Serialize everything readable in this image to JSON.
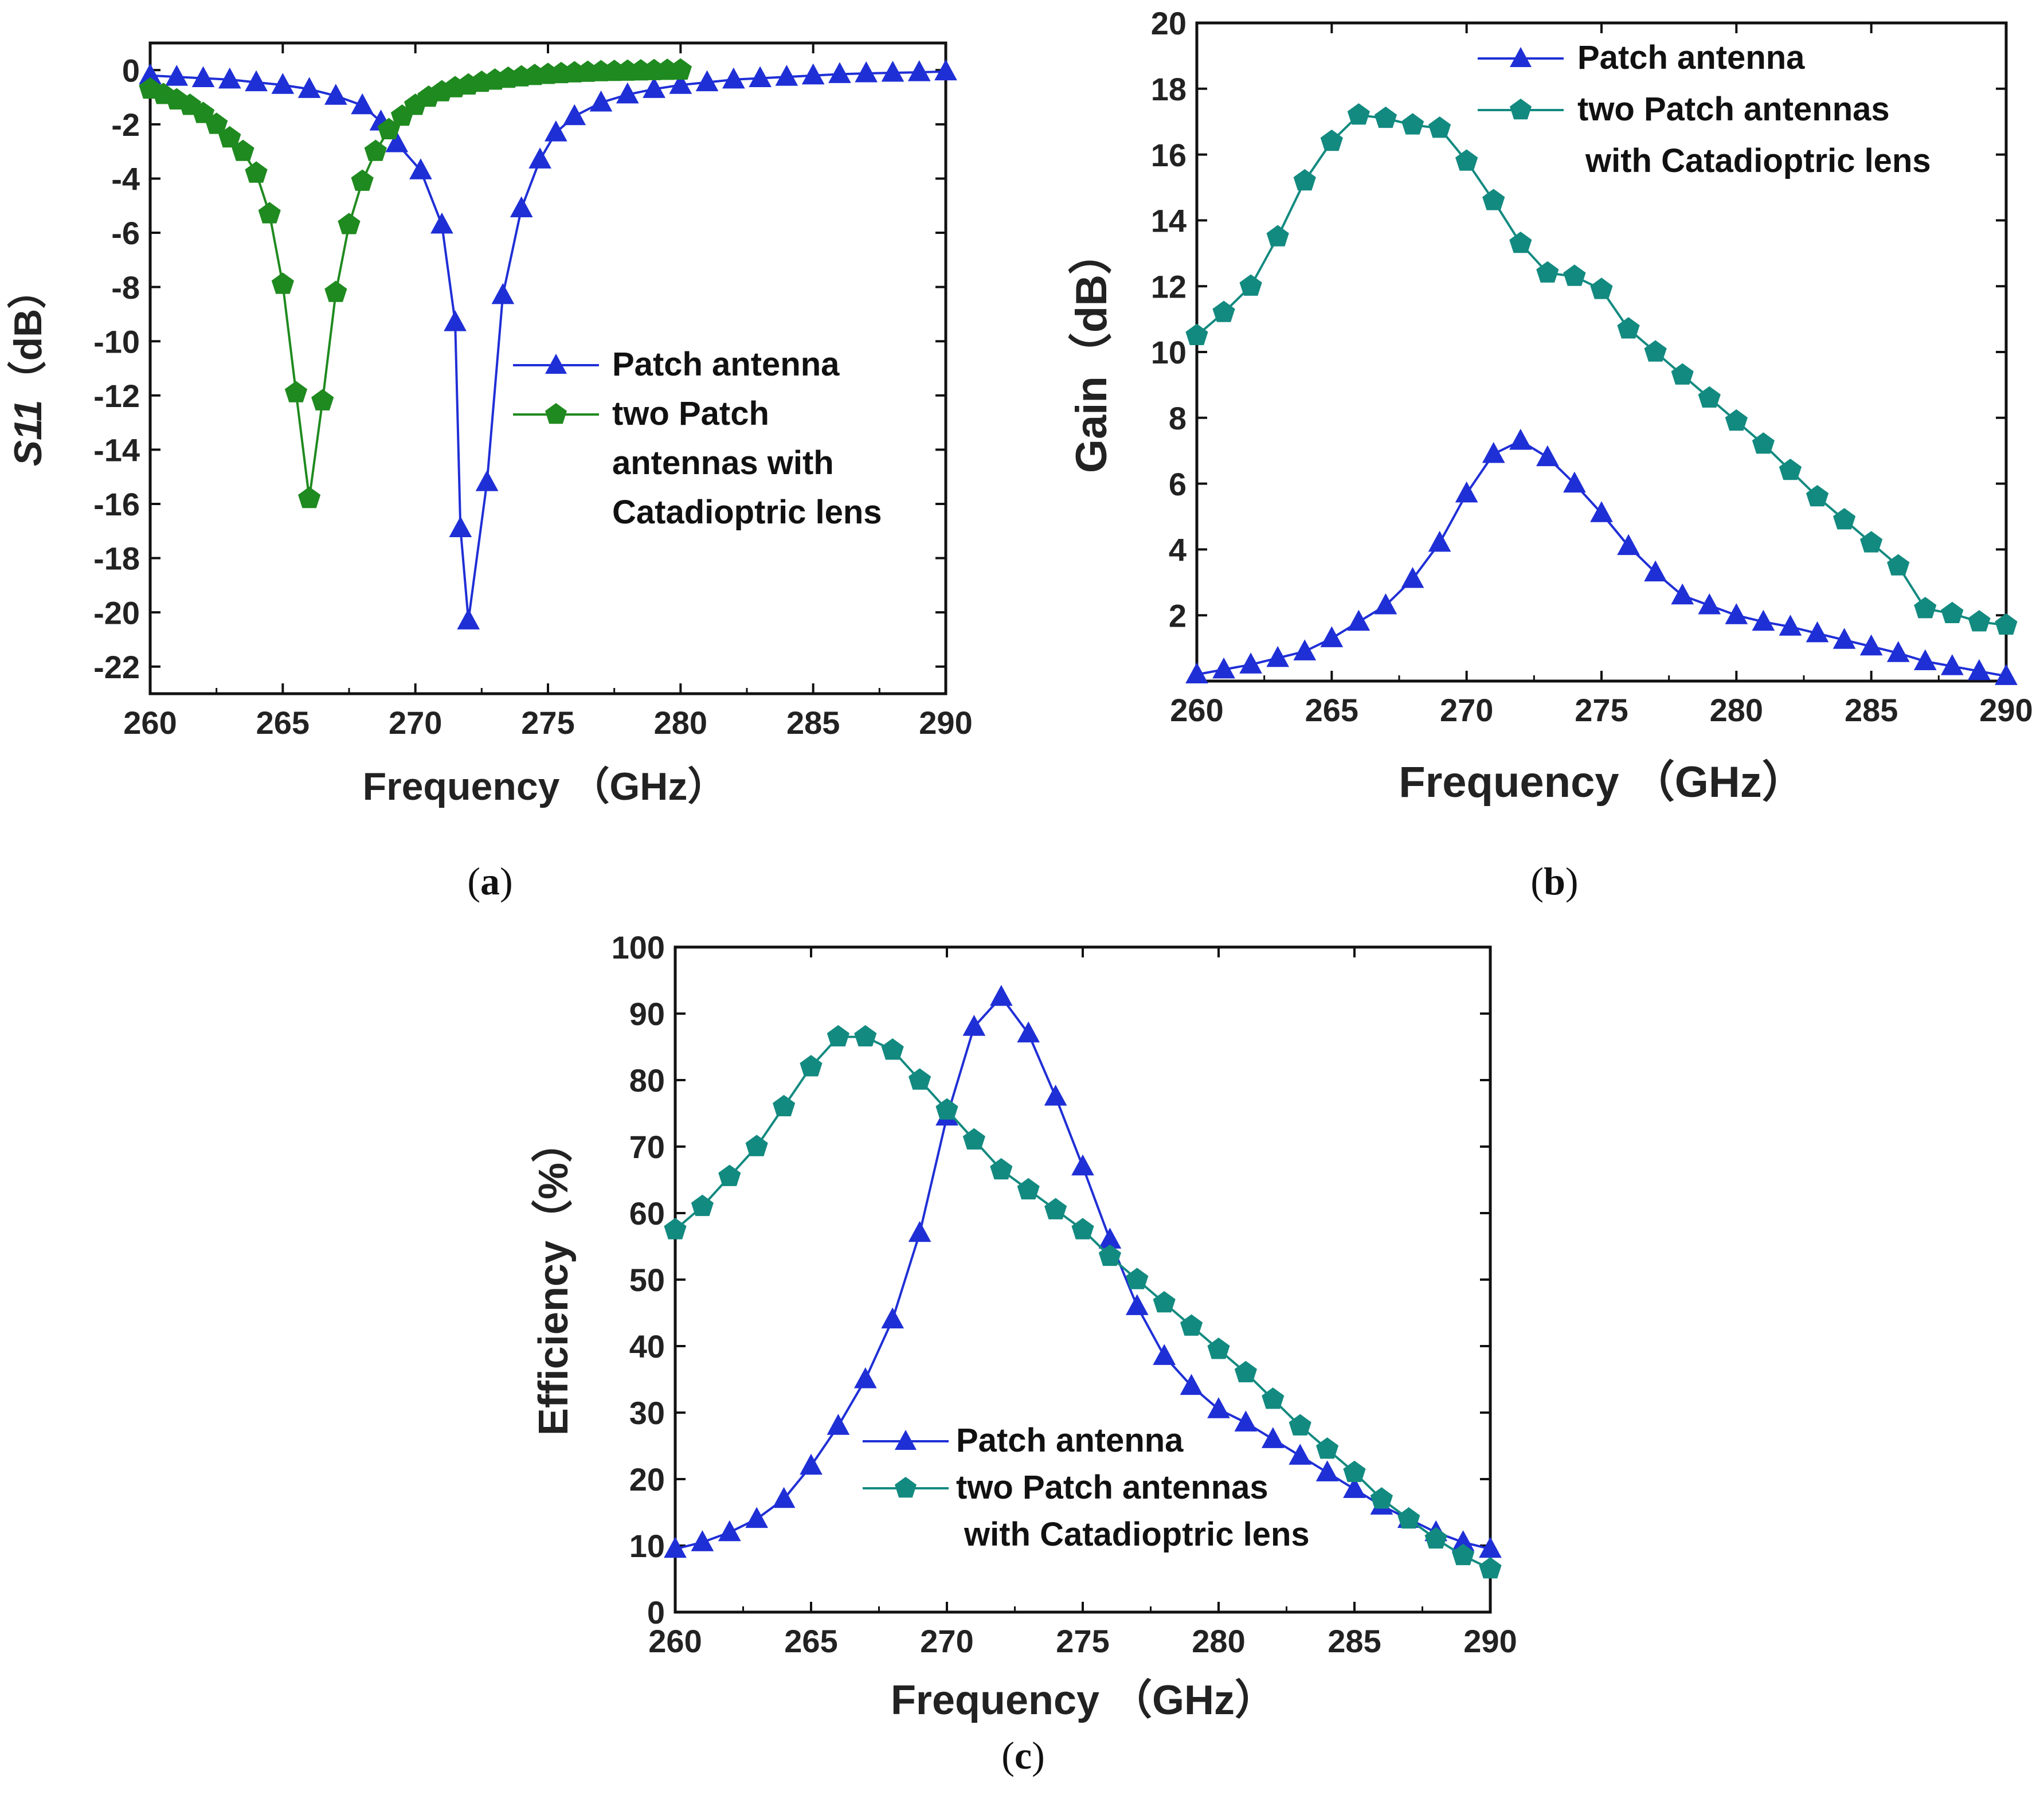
{
  "colors": {
    "blue": "#1f2fd6",
    "green": "#1f8a1f",
    "teal": "#138a80",
    "frame": "#111111"
  },
  "chart_data": [
    {
      "id": "a",
      "type": "line",
      "caption": "a",
      "xlabel": "Frequency （GHz）",
      "ylabel": "S11（dB）",
      "ylabel_parts": [
        "S11",
        "（dB）"
      ],
      "xlim": [
        260,
        290
      ],
      "ylim": [
        -23,
        1
      ],
      "xticks": [
        260,
        265,
        270,
        275,
        280,
        285,
        290
      ],
      "yticks": [
        0,
        -2,
        -4,
        -6,
        -8,
        -10,
        -12,
        -14,
        -16,
        -18,
        -20,
        -22
      ],
      "legend": [
        "Patch antenna",
        "two Patch",
        "antennas with",
        "Catadioptric lens"
      ],
      "series": [
        {
          "name": "Patch antenna",
          "color_key": "blue",
          "marker": "triangle",
          "x": [
            260,
            261,
            262,
            263,
            264,
            265,
            266,
            267,
            268,
            268.7,
            269.3,
            270.2,
            271.0,
            271.5,
            271.7,
            272.0,
            272.7,
            273.3,
            274.0,
            274.7,
            275.3,
            276,
            277,
            278,
            279,
            280,
            281,
            282,
            283,
            284,
            285,
            286,
            287,
            288,
            289,
            290
          ],
          "y": [
            -0.2,
            -0.25,
            -0.3,
            -0.35,
            -0.45,
            -0.55,
            -0.7,
            -0.95,
            -1.3,
            -1.9,
            -2.7,
            -3.7,
            -5.7,
            -9.3,
            -16.9,
            -20.3,
            -15.2,
            -8.3,
            -5.1,
            -3.3,
            -2.3,
            -1.7,
            -1.2,
            -0.9,
            -0.7,
            -0.55,
            -0.45,
            -0.35,
            -0.3,
            -0.25,
            -0.2,
            -0.15,
            -0.12,
            -0.1,
            -0.08,
            -0.05
          ]
        },
        {
          "name": "two Patch antennas with Catadioptric lens",
          "color_key": "green",
          "marker": "pentagon",
          "x": [
            260,
            260.5,
            261,
            261.5,
            262,
            262.5,
            263,
            263.5,
            264,
            264.5,
            265,
            265.5,
            266,
            266.5,
            267,
            267.5,
            268,
            268.5,
            269,
            269.5,
            270,
            270.5,
            271,
            271.5,
            272,
            272.5,
            273,
            273.5,
            274,
            274.5,
            275,
            275.5,
            276,
            276.5,
            277,
            277.5,
            278,
            278.5,
            279,
            279.5,
            280
          ],
          "y": [
            -0.7,
            -0.9,
            -1.1,
            -1.3,
            -1.6,
            -2.0,
            -2.5,
            -3.0,
            -3.8,
            -5.3,
            -7.9,
            -11.9,
            -15.8,
            -12.2,
            -8.2,
            -5.7,
            -4.1,
            -3.0,
            -2.2,
            -1.7,
            -1.3,
            -1.0,
            -0.8,
            -0.65,
            -0.55,
            -0.45,
            -0.37,
            -0.3,
            -0.25,
            -0.2,
            -0.16,
            -0.13,
            -0.1,
            -0.08,
            -0.06,
            -0.05,
            -0.04,
            -0.03,
            -0.02,
            -0.01,
            0
          ]
        }
      ]
    },
    {
      "id": "b",
      "type": "line",
      "caption": "b",
      "xlabel": "Frequency （GHz）",
      "ylabel": "Gain（dB）",
      "ylabel_parts": [
        "Gain",
        "（dB）"
      ],
      "xlim": [
        260,
        290
      ],
      "ylim": [
        0,
        20
      ],
      "xticks": [
        260,
        265,
        270,
        275,
        280,
        285,
        290
      ],
      "yticks": [
        2,
        4,
        6,
        8,
        10,
        12,
        14,
        16,
        18,
        20
      ],
      "legend": [
        "Patch antenna",
        "two Patch antennas",
        "with Catadioptric lens"
      ],
      "series": [
        {
          "name": "Patch antenna",
          "color_key": "blue",
          "marker": "triangle",
          "x": [
            260,
            261,
            262,
            263,
            264,
            265,
            266,
            267,
            268,
            269,
            270,
            271,
            272,
            273,
            274,
            275,
            276,
            277,
            278,
            279,
            280,
            281,
            282,
            283,
            284,
            285,
            286,
            287,
            288,
            289,
            290
          ],
          "y": [
            0.2,
            0.35,
            0.5,
            0.7,
            0.9,
            1.3,
            1.8,
            2.3,
            3.1,
            4.2,
            5.7,
            6.9,
            7.3,
            6.8,
            6.0,
            5.1,
            4.1,
            3.3,
            2.6,
            2.3,
            2.0,
            1.8,
            1.65,
            1.45,
            1.25,
            1.05,
            0.85,
            0.6,
            0.45,
            0.3,
            0.15
          ]
        },
        {
          "name": "two Patch antennas with Catadioptric lens",
          "color_key": "teal",
          "marker": "pentagon",
          "x": [
            260,
            261,
            262,
            263,
            264,
            265,
            266,
            267,
            268,
            269,
            270,
            271,
            272,
            273,
            274,
            275,
            276,
            277,
            278,
            279,
            280,
            281,
            282,
            283,
            284,
            285,
            286,
            287,
            288,
            289,
            290
          ],
          "y": [
            10.5,
            11.2,
            12.0,
            13.5,
            15.2,
            16.4,
            17.2,
            17.1,
            16.9,
            16.8,
            15.8,
            14.6,
            13.3,
            12.4,
            12.3,
            11.9,
            10.7,
            10.0,
            9.3,
            8.6,
            7.9,
            7.2,
            6.4,
            5.6,
            4.9,
            4.2,
            3.5,
            2.2,
            2.05,
            1.8,
            1.7
          ]
        }
      ]
    },
    {
      "id": "c",
      "type": "line",
      "caption": "c",
      "xlabel": "Frequency （GHz）",
      "ylabel": "Efficiency（%）",
      "ylabel_parts": [
        "Efficiency",
        "（%）"
      ],
      "xlim": [
        260,
        290
      ],
      "ylim": [
        0,
        100
      ],
      "xticks": [
        260,
        265,
        270,
        275,
        280,
        285,
        290
      ],
      "yticks": [
        0,
        10,
        20,
        30,
        40,
        50,
        60,
        70,
        80,
        90,
        100
      ],
      "legend": [
        "Patch antenna",
        "two Patch antennas",
        "with Catadioptric lens"
      ],
      "series": [
        {
          "name": "Patch antenna",
          "color_key": "blue",
          "marker": "triangle",
          "x": [
            260,
            261,
            262,
            263,
            264,
            265,
            266,
            267,
            268,
            269,
            270,
            271,
            272,
            273,
            274,
            275,
            276,
            277,
            278,
            279,
            280,
            281,
            282,
            283,
            284,
            285,
            286,
            287,
            288,
            289,
            290
          ],
          "y": [
            9.5,
            10.5,
            12,
            14,
            17,
            22,
            28,
            35,
            44,
            57,
            74.5,
            88,
            92.5,
            87,
            77.5,
            67,
            56,
            46,
            38.5,
            34,
            30.5,
            28.5,
            26,
            23.5,
            21,
            18.5,
            16,
            14,
            12,
            10.5,
            9.5
          ]
        },
        {
          "name": "two Patch antennas with Catadioptric lens",
          "color_key": "teal",
          "marker": "pentagon",
          "x": [
            260,
            261,
            262,
            263,
            264,
            265,
            266,
            267,
            268,
            269,
            270,
            271,
            272,
            273,
            274,
            275,
            276,
            277,
            278,
            279,
            280,
            281,
            282,
            283,
            284,
            285,
            286,
            287,
            288,
            289,
            290
          ],
          "y": [
            57.5,
            61,
            65.5,
            70,
            76,
            82,
            86.5,
            86.5,
            84.5,
            80,
            75.5,
            71,
            66.5,
            63.5,
            60.5,
            57.5,
            53.5,
            50,
            46.5,
            43,
            39.5,
            36,
            32,
            28,
            24.5,
            21,
            17,
            14,
            11,
            8.5,
            6.5
          ]
        }
      ]
    }
  ]
}
